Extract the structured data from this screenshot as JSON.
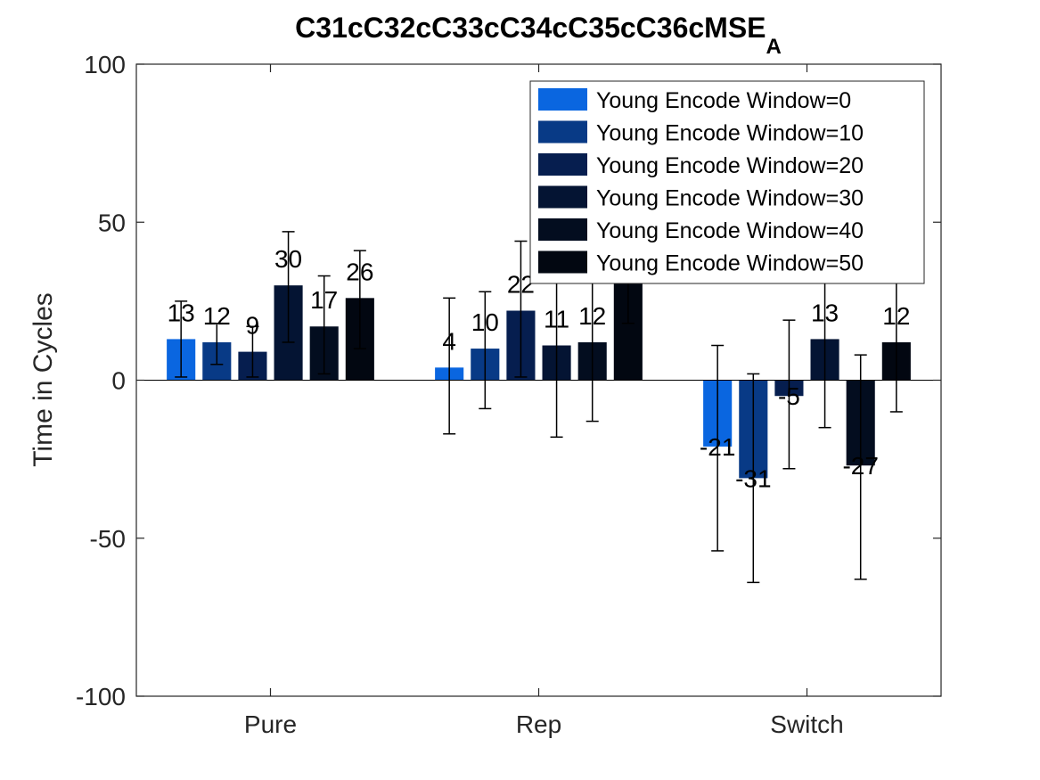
{
  "chart_data": {
    "type": "bar",
    "title": "C31cC32cC33cC34cC35cC36cMSE",
    "title_subscript": "A",
    "xlabel": "",
    "ylabel": "Time in Cycles",
    "ylim": [
      -100,
      100
    ],
    "yticks": [
      -100,
      -50,
      0,
      50,
      100
    ],
    "categories": [
      "Pure",
      "Rep",
      "Switch"
    ],
    "legend_position": "top-right",
    "grid": false,
    "series": [
      {
        "name": "Young Encode Window=0",
        "color": "#0a66e0",
        "values": [
          13,
          4,
          -21
        ],
        "labels": [
          "13",
          "4",
          "-21"
        ],
        "err_low": [
          1,
          -17,
          -54
        ],
        "err_high": [
          25,
          26,
          11
        ]
      },
      {
        "name": "Young Encode Window=10",
        "color": "#083a86",
        "values": [
          12,
          10,
          -31
        ],
        "labels": [
          "12",
          "10",
          "-31"
        ],
        "err_low": [
          5,
          -9,
          -64
        ],
        "err_high": [
          18,
          28,
          2
        ]
      },
      {
        "name": "Young Encode Window=20",
        "color": "#061e4f",
        "values": [
          9,
          22,
          -5
        ],
        "labels": [
          "9",
          "22",
          "-5"
        ],
        "err_low": [
          1,
          1,
          -28
        ],
        "err_high": [
          17,
          44,
          19
        ]
      },
      {
        "name": "Young Encode Window=30",
        "color": "#041433",
        "values": [
          30,
          11,
          13
        ],
        "labels": [
          "30",
          "11",
          "13"
        ],
        "err_low": [
          12,
          -18,
          -15
        ],
        "err_high": [
          47,
          39,
          40
        ]
      },
      {
        "name": "Young Encode Window=40",
        "color": "#030d1f",
        "values": [
          17,
          12,
          -27
        ],
        "labels": [
          "17",
          "12",
          "-27"
        ],
        "err_low": [
          2,
          -13,
          -63
        ],
        "err_high": [
          33,
          37,
          8
        ]
      },
      {
        "name": "Young Encode Window=50",
        "color": "#020711",
        "values": [
          26,
          37,
          12
        ],
        "labels": [
          "26",
          "",
          "12"
        ],
        "err_low": [
          10,
          18,
          -10
        ],
        "err_high": [
          41,
          56,
          34
        ]
      }
    ]
  }
}
